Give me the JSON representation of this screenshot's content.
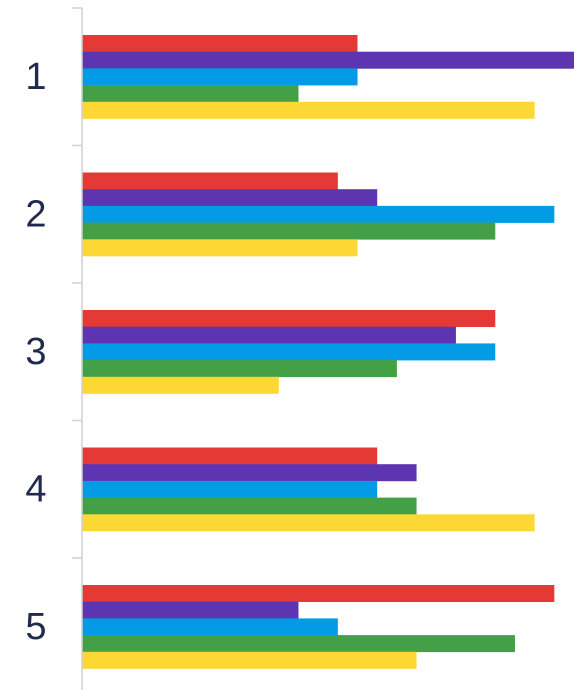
{
  "chart_data": {
    "type": "bar",
    "orientation": "horizontal",
    "categories": [
      "1",
      "2",
      "3",
      "4",
      "5"
    ],
    "series": [
      {
        "color": "#E53935",
        "values": [
          7,
          6.5,
          10.5,
          7.5,
          12
        ]
      },
      {
        "color": "#5E35B1",
        "values": [
          12.5,
          7.5,
          9.5,
          8.5,
          5.5
        ]
      },
      {
        "color": "#039BE5",
        "values": [
          7,
          12,
          10.5,
          7.5,
          6.5
        ]
      },
      {
        "color": "#43A047",
        "values": [
          5.5,
          10.5,
          8,
          8.5,
          11
        ]
      },
      {
        "color": "#FDD835",
        "values": [
          11.5,
          7,
          5,
          11.5,
          8.5
        ]
      }
    ],
    "xlim": [
      0,
      12.5
    ],
    "grid": false,
    "legend": "none",
    "title": "",
    "xlabel": "",
    "ylabel": ""
  }
}
